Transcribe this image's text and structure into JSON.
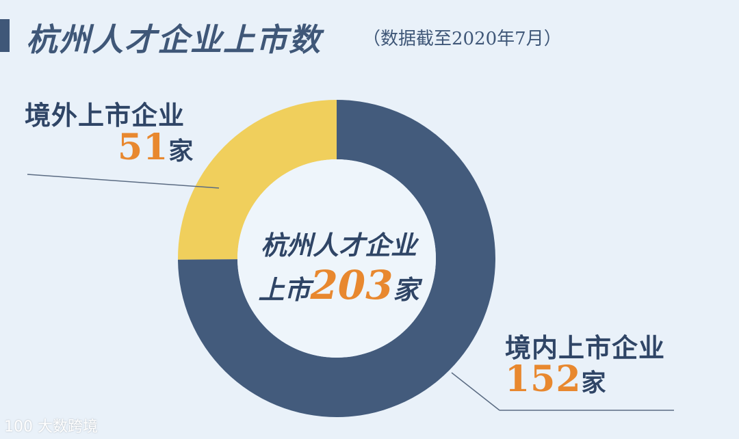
{
  "title": "杭州人才企业上市数",
  "subtitle": "（数据截至2020年7月）",
  "center": {
    "line1": "杭州人才企业",
    "line2_prefix": "上市",
    "total": "203",
    "unit": "家"
  },
  "watermark": {
    "logo_text": "100",
    "text": "大数跨境"
  },
  "colors": {
    "domestic": "#435b7c",
    "overseas": "#f0cf5c",
    "accent": "#e8882f",
    "text": "#2f4566",
    "background": "#e9f1f9"
  },
  "chart_data": {
    "type": "pie",
    "variant": "donut",
    "categories": [
      "境外上市企业",
      "境内上市企业"
    ],
    "values": [
      51,
      152
    ],
    "total": 203,
    "unit": "家",
    "labels": [
      {
        "name": "境外上市企业",
        "value": "51",
        "unit": "家"
      },
      {
        "name": "境内上市企业",
        "value": "152",
        "unit": "家"
      }
    ]
  }
}
